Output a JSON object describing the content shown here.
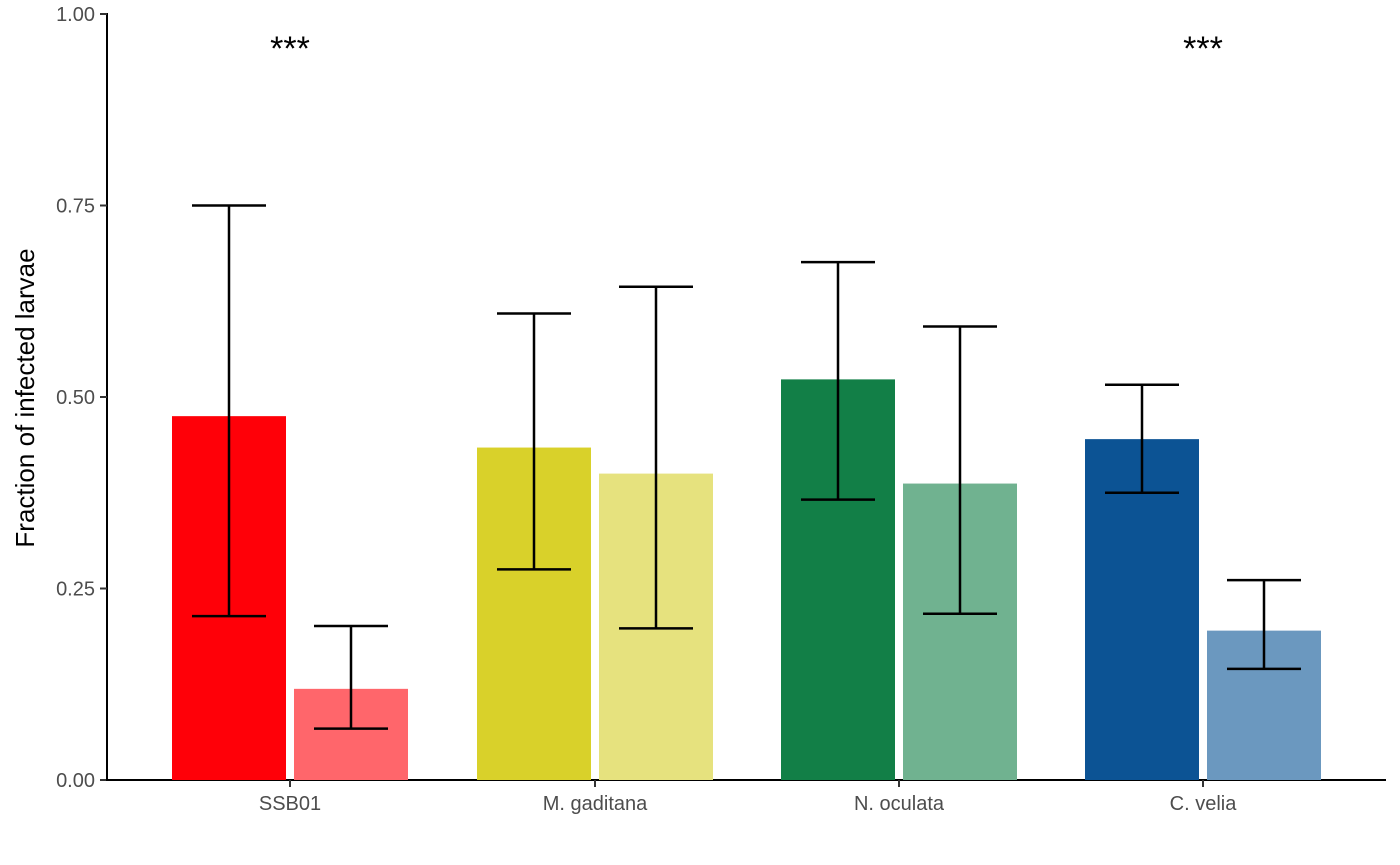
{
  "chart_data": {
    "type": "bar",
    "title": "",
    "xlabel": "",
    "ylabel": "Fraction of infected larvae",
    "ylim": [
      0,
      1
    ],
    "yticks": [
      0,
      0.25,
      0.5,
      0.75,
      1
    ],
    "ytick_labels": [
      "0.00",
      "0.25",
      "0.50",
      "0.75",
      "1.00"
    ],
    "grid": false,
    "legend": "none",
    "categories": [
      "SSB01",
      "M. gaditana",
      "N. oculata",
      "C. velia"
    ],
    "groups": [
      {
        "category": "SSB01",
        "annotation": "***",
        "bars": [
          {
            "value": 0.475,
            "error_low": 0.214,
            "error_high": 0.75,
            "color": "#ff0008"
          },
          {
            "value": 0.119,
            "error_low": 0.067,
            "error_high": 0.201,
            "color": "#ff666b"
          }
        ]
      },
      {
        "category": "M. gaditana",
        "annotation": "",
        "bars": [
          {
            "value": 0.434,
            "error_low": 0.275,
            "error_high": 0.609,
            "color": "#d9d12a"
          },
          {
            "value": 0.4,
            "error_low": 0.198,
            "error_high": 0.644,
            "color": "#e6e27e"
          }
        ]
      },
      {
        "category": "N. oculata",
        "annotation": "",
        "bars": [
          {
            "value": 0.523,
            "error_low": 0.366,
            "error_high": 0.676,
            "color": "#127f47"
          },
          {
            "value": 0.387,
            "error_low": 0.217,
            "error_high": 0.592,
            "color": "#70b290"
          }
        ]
      },
      {
        "category": "C. velia",
        "annotation": "***",
        "bars": [
          {
            "value": 0.445,
            "error_low": 0.375,
            "error_high": 0.516,
            "color": "#0c5394"
          },
          {
            "value": 0.195,
            "error_low": 0.145,
            "error_high": 0.261,
            "color": "#6b98bf"
          }
        ]
      }
    ]
  }
}
